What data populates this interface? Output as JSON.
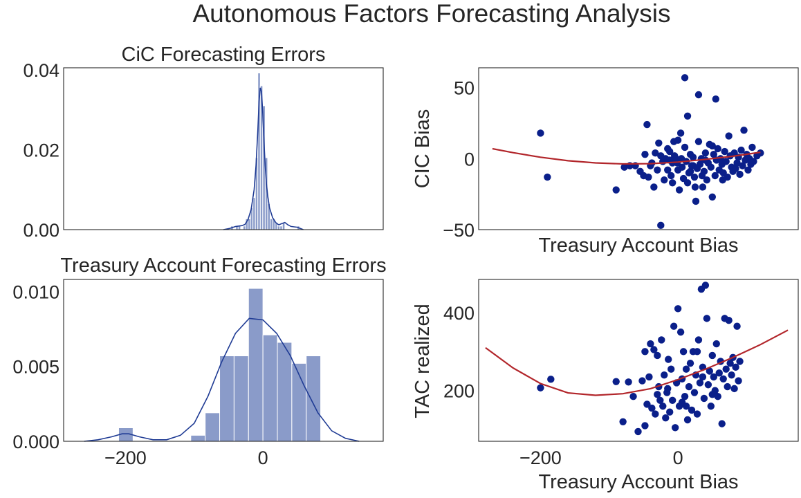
{
  "figure": {
    "title": "Autonomous Factors Forecasting Analysis",
    "colors": {
      "hist_bar": "#8a9bc9",
      "hist_bar_edge": "#ffffff",
      "kde_line": "#1f3b94",
      "scatter_point": "#0a1f8a",
      "fit_line": "#b2262b",
      "axes_frame": "#262626",
      "text": "#262626"
    }
  },
  "chart_data": [
    {
      "id": "cic_hist",
      "type": "bar",
      "title": "CiC Forecasting Errors",
      "xlabel": "",
      "ylabel": "",
      "xlim": [
        -320,
        200
      ],
      "ylim": [
        0,
        0.0405
      ],
      "yticks": [
        0.0,
        0.02,
        0.04
      ],
      "ytick_labels": [
        "0.00",
        "0.02",
        "0.04"
      ],
      "xticks": [],
      "bins": [
        {
          "x0": -48,
          "x1": -44,
          "value": 0.0009
        },
        {
          "x0": -44,
          "x1": -40,
          "value": 0.0
        },
        {
          "x0": -40,
          "x1": -36,
          "value": 0.0009
        },
        {
          "x0": -36,
          "x1": -32,
          "value": 0.0009
        },
        {
          "x0": -32,
          "x1": -28,
          "value": 0.0
        },
        {
          "x0": -28,
          "x1": -24,
          "value": 0.0009
        },
        {
          "x0": -24,
          "x1": -20,
          "value": 0.0027
        },
        {
          "x0": -20,
          "x1": -16,
          "value": 0.0027
        },
        {
          "x0": -16,
          "x1": -12,
          "value": 0.0055
        },
        {
          "x0": -12,
          "x1": -8,
          "value": 0.008
        },
        {
          "x0": -8,
          "x1": -4,
          "value": 0.018
        },
        {
          "x0": -4,
          "x1": 0,
          "value": 0.0392
        },
        {
          "x0": 0,
          "x1": 4,
          "value": 0.036
        },
        {
          "x0": 4,
          "x1": 8,
          "value": 0.031
        },
        {
          "x0": 8,
          "x1": 12,
          "value": 0.018
        },
        {
          "x0": 12,
          "x1": 16,
          "value": 0.0065
        },
        {
          "x0": 16,
          "x1": 20,
          "value": 0.0027
        },
        {
          "x0": 20,
          "x1": 24,
          "value": 0.0027
        },
        {
          "x0": 24,
          "x1": 28,
          "value": 0.0018
        },
        {
          "x0": 28,
          "x1": 32,
          "value": 0.0009
        },
        {
          "x0": 32,
          "x1": 36,
          "value": 0.0009
        },
        {
          "x0": 36,
          "x1": 40,
          "value": 0.0018
        },
        {
          "x0": 40,
          "x1": 44,
          "value": 0.0
        },
        {
          "x0": 44,
          "x1": 48,
          "value": 0.0
        },
        {
          "x0": 48,
          "x1": 52,
          "value": 0.0
        },
        {
          "x0": 52,
          "x1": 56,
          "value": 0.0
        },
        {
          "x0": 56,
          "x1": 60,
          "value": 0.0
        },
        {
          "x0": 60,
          "x1": 64,
          "value": 0.0009
        }
      ],
      "kde": {
        "x": [
          -60,
          -50,
          -40,
          -30,
          -25,
          -20,
          -15,
          -10,
          -7,
          -4,
          -2,
          0,
          2,
          4,
          6,
          8,
          10,
          12,
          15,
          20,
          25,
          30,
          35,
          40,
          45,
          50,
          55,
          60,
          65,
          70
        ],
        "y": [
          0.0,
          0.0003,
          0.0008,
          0.001,
          0.0013,
          0.0025,
          0.005,
          0.01,
          0.016,
          0.025,
          0.032,
          0.0355,
          0.0345,
          0.029,
          0.022,
          0.016,
          0.0115,
          0.0085,
          0.0055,
          0.003,
          0.0018,
          0.0012,
          0.0015,
          0.0018,
          0.0012,
          0.0008,
          0.0007,
          0.0006,
          0.0003,
          0.0
        ]
      }
    },
    {
      "id": "cic_scatter",
      "type": "scatter",
      "title": "",
      "xlabel": "Treasury Account Bias",
      "ylabel": "CIC Bias",
      "xlim": [
        -290,
        175
      ],
      "ylim": [
        -50,
        64
      ],
      "yticks": [
        -50,
        0,
        50
      ],
      "ytick_labels": [
        "−50",
        "0",
        "50"
      ],
      "xticks": [],
      "points": [
        [
          -200,
          18
        ],
        [
          -190,
          -13
        ],
        [
          -90,
          -22
        ],
        [
          -78,
          -6
        ],
        [
          -70,
          -5
        ],
        [
          -62,
          -5
        ],
        [
          -55,
          -9
        ],
        [
          -50,
          -12
        ],
        [
          -48,
          3
        ],
        [
          -45,
          24
        ],
        [
          -43,
          -13
        ],
        [
          -40,
          -5
        ],
        [
          -38,
          -3
        ],
        [
          -35,
          -20
        ],
        [
          -33,
          4
        ],
        [
          -30,
          -8
        ],
        [
          -28,
          11
        ],
        [
          -25,
          -47
        ],
        [
          -22,
          -2
        ],
        [
          -20,
          -15
        ],
        [
          -18,
          0
        ],
        [
          -15,
          -8
        ],
        [
          -12,
          5
        ],
        [
          -10,
          -12
        ],
        [
          -8,
          -3
        ],
        [
          -5,
          2
        ],
        [
          -3,
          0
        ],
        [
          -1,
          -3
        ],
        [
          0,
          13
        ],
        [
          2,
          -22
        ],
        [
          4,
          18
        ],
        [
          6,
          -6
        ],
        [
          8,
          -14
        ],
        [
          10,
          8
        ],
        [
          12,
          -2
        ],
        [
          14,
          -17
        ],
        [
          16,
          -10
        ],
        [
          18,
          3
        ],
        [
          20,
          -5
        ],
        [
          22,
          1
        ],
        [
          24,
          -13
        ],
        [
          26,
          -30
        ],
        [
          28,
          -7
        ],
        [
          30,
          12
        ],
        [
          32,
          -4
        ],
        [
          34,
          0
        ],
        [
          36,
          -20
        ],
        [
          38,
          -9
        ],
        [
          40,
          4
        ],
        [
          42,
          -15
        ],
        [
          44,
          -3
        ],
        [
          46,
          10
        ],
        [
          48,
          -6
        ],
        [
          50,
          -27
        ],
        [
          52,
          3
        ],
        [
          54,
          -12
        ],
        [
          56,
          -1
        ],
        [
          58,
          7
        ],
        [
          60,
          -8
        ],
        [
          62,
          0
        ],
        [
          64,
          -4
        ],
        [
          66,
          -10
        ],
        [
          68,
          5
        ],
        [
          70,
          -2
        ],
        [
          72,
          -13
        ],
        [
          74,
          16
        ],
        [
          76,
          2
        ],
        [
          78,
          -6
        ],
        [
          80,
          -9
        ],
        [
          82,
          4
        ],
        [
          84,
          -7
        ],
        [
          86,
          -3
        ],
        [
          88,
          1
        ],
        [
          90,
          -11
        ],
        [
          92,
          6
        ],
        [
          94,
          -5
        ],
        [
          96,
          20
        ],
        [
          98,
          -1
        ],
        [
          100,
          3
        ],
        [
          102,
          -8
        ],
        [
          104,
          0
        ],
        [
          106,
          -4
        ],
        [
          108,
          8
        ],
        [
          110,
          -2
        ],
        [
          115,
          2
        ],
        [
          120,
          4
        ],
        [
          -15,
          7
        ],
        [
          -6,
          12
        ],
        [
          14,
          30
        ],
        [
          30,
          45
        ],
        [
          55,
          42
        ],
        [
          10,
          57
        ],
        [
          -8,
          -17
        ],
        [
          25,
          -20
        ],
        [
          35,
          -12
        ],
        [
          5,
          0
        ],
        [
          0,
          -8
        ],
        [
          -25,
          2
        ],
        [
          40,
          -1
        ],
        [
          65,
          -15
        ],
        [
          18,
          -9
        ],
        [
          -12,
          -1
        ],
        [
          50,
          9
        ],
        [
          22,
          -5
        ]
      ],
      "fit": {
        "x": [
          -270,
          -240,
          -200,
          -160,
          -120,
          -80,
          -40,
          0,
          40,
          80,
          120
        ],
        "y": [
          7.0,
          4.2,
          1.0,
          -1.5,
          -3.0,
          -3.7,
          -3.5,
          -2.4,
          -0.5,
          1.7,
          4.5
        ]
      }
    },
    {
      "id": "tac_hist",
      "type": "bar",
      "title": "Treasury Account Forecasting Errors",
      "xlabel": "",
      "ylabel": "",
      "xlim": [
        -290,
        175
      ],
      "ylim": [
        0,
        0.0108
      ],
      "yticks": [
        0.0,
        0.005,
        0.01
      ],
      "ytick_labels": [
        "0.000",
        "0.005",
        "0.010"
      ],
      "xticks": [
        -200,
        0
      ],
      "xtick_labels": [
        "−200",
        "0"
      ],
      "bins": [
        {
          "x0": -210,
          "x1": -189,
          "value": 0.0009
        },
        {
          "x0": -105,
          "x1": -84,
          "value": 0.0004
        },
        {
          "x0": -84,
          "x1": -63,
          "value": 0.0019
        },
        {
          "x0": -63,
          "x1": -42,
          "value": 0.0057
        },
        {
          "x0": -42,
          "x1": -21,
          "value": 0.0057
        },
        {
          "x0": -21,
          "x1": 0,
          "value": 0.0102
        },
        {
          "x0": 0,
          "x1": 21,
          "value": 0.0071
        },
        {
          "x0": 21,
          "x1": 42,
          "value": 0.0066
        },
        {
          "x0": 42,
          "x1": 63,
          "value": 0.0052
        },
        {
          "x0": 63,
          "x1": 84,
          "value": 0.0057
        }
      ],
      "kde": {
        "x": [
          -260,
          -240,
          -220,
          -205,
          -195,
          -180,
          -160,
          -140,
          -120,
          -100,
          -80,
          -60,
          -40,
          -20,
          0,
          20,
          40,
          60,
          80,
          100,
          120,
          140
        ],
        "y": [
          0.0,
          0.0001,
          0.0003,
          0.0005,
          0.0005,
          0.0003,
          0.0001,
          0.0001,
          0.0004,
          0.0012,
          0.003,
          0.0053,
          0.0072,
          0.0082,
          0.0081,
          0.0072,
          0.0057,
          0.0037,
          0.0019,
          0.0007,
          0.0002,
          0.0
        ]
      }
    },
    {
      "id": "tac_scatter",
      "type": "scatter",
      "title": "",
      "xlabel": "Treasury Account Bias",
      "ylabel": "TAC realized",
      "xlim": [
        -290,
        175
      ],
      "ylim": [
        70,
        485
      ],
      "yticks": [
        200,
        400
      ],
      "ytick_labels": [
        "200",
        "400"
      ],
      "xticks": [
        -200,
        0
      ],
      "xtick_labels": [
        "−200",
        "0"
      ],
      "points": [
        [
          -200,
          207
        ],
        [
          -185,
          229
        ],
        [
          -90,
          223
        ],
        [
          -80,
          120
        ],
        [
          -72,
          222
        ],
        [
          -65,
          185
        ],
        [
          -58,
          95
        ],
        [
          -52,
          225
        ],
        [
          -48,
          110
        ],
        [
          -45,
          165
        ],
        [
          -42,
          235
        ],
        [
          -40,
          320
        ],
        [
          -38,
          155
        ],
        [
          -35,
          305
        ],
        [
          -33,
          140
        ],
        [
          -30,
          290
        ],
        [
          -28,
          210
        ],
        [
          -26,
          175
        ],
        [
          -24,
          330
        ],
        [
          -22,
          160
        ],
        [
          -20,
          240
        ],
        [
          -18,
          130
        ],
        [
          -16,
          195
        ],
        [
          -14,
          280
        ],
        [
          -12,
          145
        ],
        [
          -10,
          255
        ],
        [
          -8,
          175
        ],
        [
          -6,
          365
        ],
        [
          -4,
          105
        ],
        [
          -2,
          220
        ],
        [
          0,
          410
        ],
        [
          2,
          160
        ],
        [
          4,
          350
        ],
        [
          6,
          230
        ],
        [
          8,
          300
        ],
        [
          10,
          185
        ],
        [
          12,
          255
        ],
        [
          14,
          125
        ],
        [
          16,
          210
        ],
        [
          18,
          270
        ],
        [
          20,
          150
        ],
        [
          22,
          300
        ],
        [
          24,
          195
        ],
        [
          26,
          240
        ],
        [
          28,
          140
        ],
        [
          30,
          330
        ],
        [
          32,
          220
        ],
        [
          34,
          460
        ],
        [
          36,
          260
        ],
        [
          38,
          180
        ],
        [
          40,
          470
        ],
        [
          42,
          385
        ],
        [
          44,
          215
        ],
        [
          46,
          250
        ],
        [
          48,
          160
        ],
        [
          50,
          290
        ],
        [
          52,
          235
        ],
        [
          54,
          200
        ],
        [
          56,
          320
        ],
        [
          58,
          185
        ],
        [
          60,
          245
        ],
        [
          62,
          275
        ],
        [
          64,
          115
        ],
        [
          66,
          230
        ],
        [
          68,
          385
        ],
        [
          70,
          255
        ],
        [
          72,
          210
        ],
        [
          74,
          380
        ],
        [
          76,
          270
        ],
        [
          78,
          240
        ],
        [
          80,
          285
        ],
        [
          82,
          205
        ],
        [
          84,
          260
        ],
        [
          86,
          365
        ],
        [
          88,
          225
        ],
        [
          90,
          275
        ],
        [
          -48,
          300
        ],
        [
          -30,
          190
        ],
        [
          12,
          160
        ],
        [
          28,
          300
        ],
        [
          50,
          190
        ],
        [
          6,
          170
        ],
        [
          -15,
          205
        ],
        [
          36,
          235
        ]
      ],
      "fit": {
        "x": [
          -280,
          -240,
          -200,
          -160,
          -120,
          -80,
          -40,
          0,
          40,
          80,
          120,
          160
        ],
        "y": [
          310,
          258,
          218,
          194,
          188,
          192,
          205,
          228,
          255,
          285,
          318,
          355
        ]
      }
    }
  ]
}
